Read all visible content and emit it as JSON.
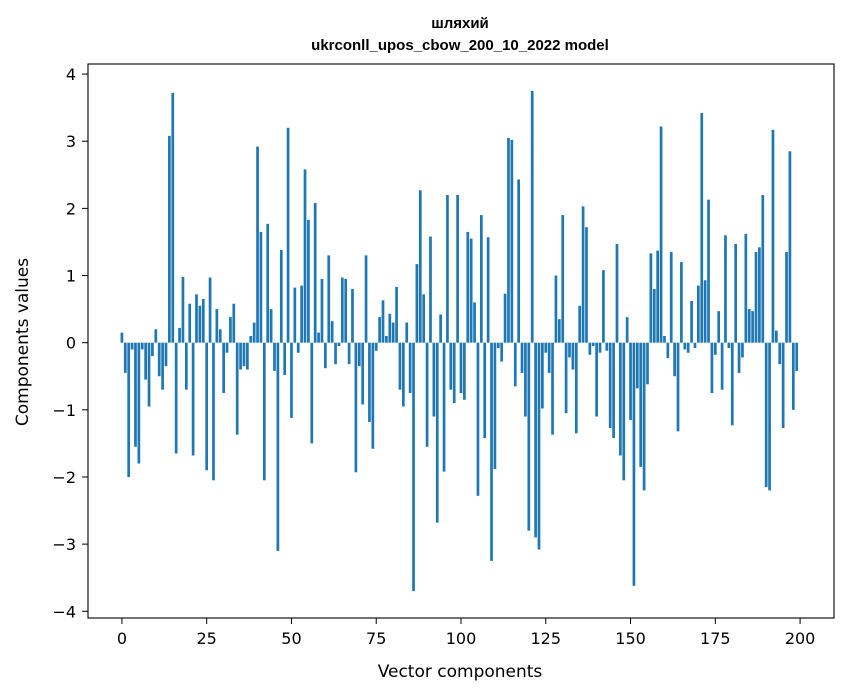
{
  "chart_data": {
    "type": "bar",
    "title": "шляхий",
    "subtitle": "ukrconll_upos_cbow_200_10_2022 model",
    "xlabel": "Vector components",
    "ylabel": "Components values",
    "xlim": [
      -10,
      210
    ],
    "ylim": [
      -4.1,
      4.15
    ],
    "xticks": [
      0,
      25,
      50,
      75,
      100,
      125,
      150,
      175,
      200
    ],
    "yticks": [
      -4,
      -3,
      -2,
      -1,
      0,
      1,
      2,
      3,
      4
    ],
    "xtick_labels": [
      "0",
      "25",
      "50",
      "75",
      "100",
      "125",
      "150",
      "175",
      "200"
    ],
    "ytick_labels": [
      "−4",
      "−3",
      "−2",
      "−1",
      "0",
      "1",
      "2",
      "3",
      "4"
    ],
    "bar_color": "#1f77b4",
    "grid": false,
    "x": [
      0,
      1,
      2,
      3,
      4,
      5,
      6,
      7,
      8,
      9,
      10,
      11,
      12,
      13,
      14,
      15,
      16,
      17,
      18,
      19,
      20,
      21,
      22,
      23,
      24,
      25,
      26,
      27,
      28,
      29,
      30,
      31,
      32,
      33,
      34,
      35,
      36,
      37,
      38,
      39,
      40,
      41,
      42,
      43,
      44,
      45,
      46,
      47,
      48,
      49,
      50,
      51,
      52,
      53,
      54,
      55,
      56,
      57,
      58,
      59,
      60,
      61,
      62,
      63,
      64,
      65,
      66,
      67,
      68,
      69,
      70,
      71,
      72,
      73,
      74,
      75,
      76,
      77,
      78,
      79,
      80,
      81,
      82,
      83,
      84,
      85,
      86,
      87,
      88,
      89,
      90,
      91,
      92,
      93,
      94,
      95,
      96,
      97,
      98,
      99,
      100,
      101,
      102,
      103,
      104,
      105,
      106,
      107,
      108,
      109,
      110,
      111,
      112,
      113,
      114,
      115,
      116,
      117,
      118,
      119,
      120,
      121,
      122,
      123,
      124,
      125,
      126,
      127,
      128,
      129,
      130,
      131,
      132,
      133,
      134,
      135,
      136,
      137,
      138,
      139,
      140,
      141,
      142,
      143,
      144,
      145,
      146,
      147,
      148,
      149,
      150,
      151,
      152,
      153,
      154,
      155,
      156,
      157,
      158,
      159,
      160,
      161,
      162,
      163,
      164,
      165,
      166,
      167,
      168,
      169,
      170,
      171,
      172,
      173,
      174,
      175,
      176,
      177,
      178,
      179,
      180,
      181,
      182,
      183,
      184,
      185,
      186,
      187,
      188,
      189,
      190,
      191,
      192,
      193,
      194,
      195,
      196,
      197,
      198,
      199
    ],
    "values": [
      0.15,
      -0.45,
      -2.0,
      -0.1,
      -1.55,
      -1.8,
      -0.1,
      -0.55,
      -0.95,
      -0.2,
      0.2,
      -0.5,
      -0.7,
      -0.35,
      3.08,
      3.72,
      -1.65,
      0.22,
      0.98,
      -0.7,
      0.58,
      -1.68,
      0.72,
      0.55,
      0.65,
      -1.9,
      0.97,
      -2.05,
      0.5,
      0.2,
      -0.75,
      -0.15,
      0.38,
      0.58,
      -1.37,
      -0.4,
      -0.35,
      -0.4,
      0.1,
      0.3,
      2.92,
      1.65,
      -2.05,
      1.77,
      0.5,
      -0.42,
      -3.1,
      1.38,
      -0.48,
      3.2,
      -1.12,
      0.82,
      -0.15,
      0.85,
      2.58,
      1.83,
      -1.5,
      2.08,
      0.15,
      0.95,
      -0.38,
      1.3,
      0.32,
      -0.32,
      -0.05,
      0.97,
      0.95,
      -0.32,
      0.8,
      -1.93,
      -0.35,
      -0.92,
      1.3,
      -1.18,
      -1.58,
      -0.12,
      0.38,
      0.63,
      0.1,
      0.43,
      0.3,
      0.83,
      -0.7,
      -0.95,
      0.3,
      -0.75,
      -3.7,
      1.17,
      2.27,
      0.72,
      -1.55,
      1.58,
      -1.1,
      -2.68,
      0.42,
      -1.92,
      2.2,
      -0.7,
      -0.9,
      2.2,
      -0.75,
      -0.85,
      1.65,
      1.55,
      0.6,
      -2.28,
      1.9,
      -1.42,
      1.57,
      -3.25,
      -1.88,
      -0.08,
      -0.28,
      0.73,
      3.05,
      3.02,
      -0.65,
      2.43,
      -0.45,
      -1.1,
      -2.8,
      3.75,
      -2.9,
      -3.08,
      -0.98,
      -0.15,
      -0.45,
      -1.37,
      1.0,
      0.35,
      1.9,
      -1.05,
      -0.22,
      -0.4,
      -1.35,
      0.55,
      2.03,
      1.72,
      -0.18,
      -0.05,
      -1.1,
      -0.15,
      1.08,
      -0.12,
      -1.27,
      -1.42,
      1.47,
      -1.68,
      -2.05,
      0.38,
      -1.15,
      -3.62,
      -0.68,
      -1.85,
      -2.2,
      -0.62,
      1.33,
      0.8,
      1.37,
      3.22,
      0.1,
      -0.23,
      1.35,
      -0.5,
      -1.32,
      1.2,
      -0.1,
      -0.15,
      0.62,
      -0.08,
      0.85,
      3.42,
      0.93,
      2.13,
      -0.75,
      -0.18,
      0.47,
      -0.7,
      1.6,
      -0.08,
      -1.23,
      1.47,
      -0.45,
      -0.22,
      1.62,
      0.5,
      0.47,
      1.35,
      1.42,
      2.2,
      -2.15,
      -2.2,
      3.17,
      0.18,
      -0.32,
      -1.27,
      1.35,
      2.85,
      -1.0,
      -0.42
    ]
  }
}
